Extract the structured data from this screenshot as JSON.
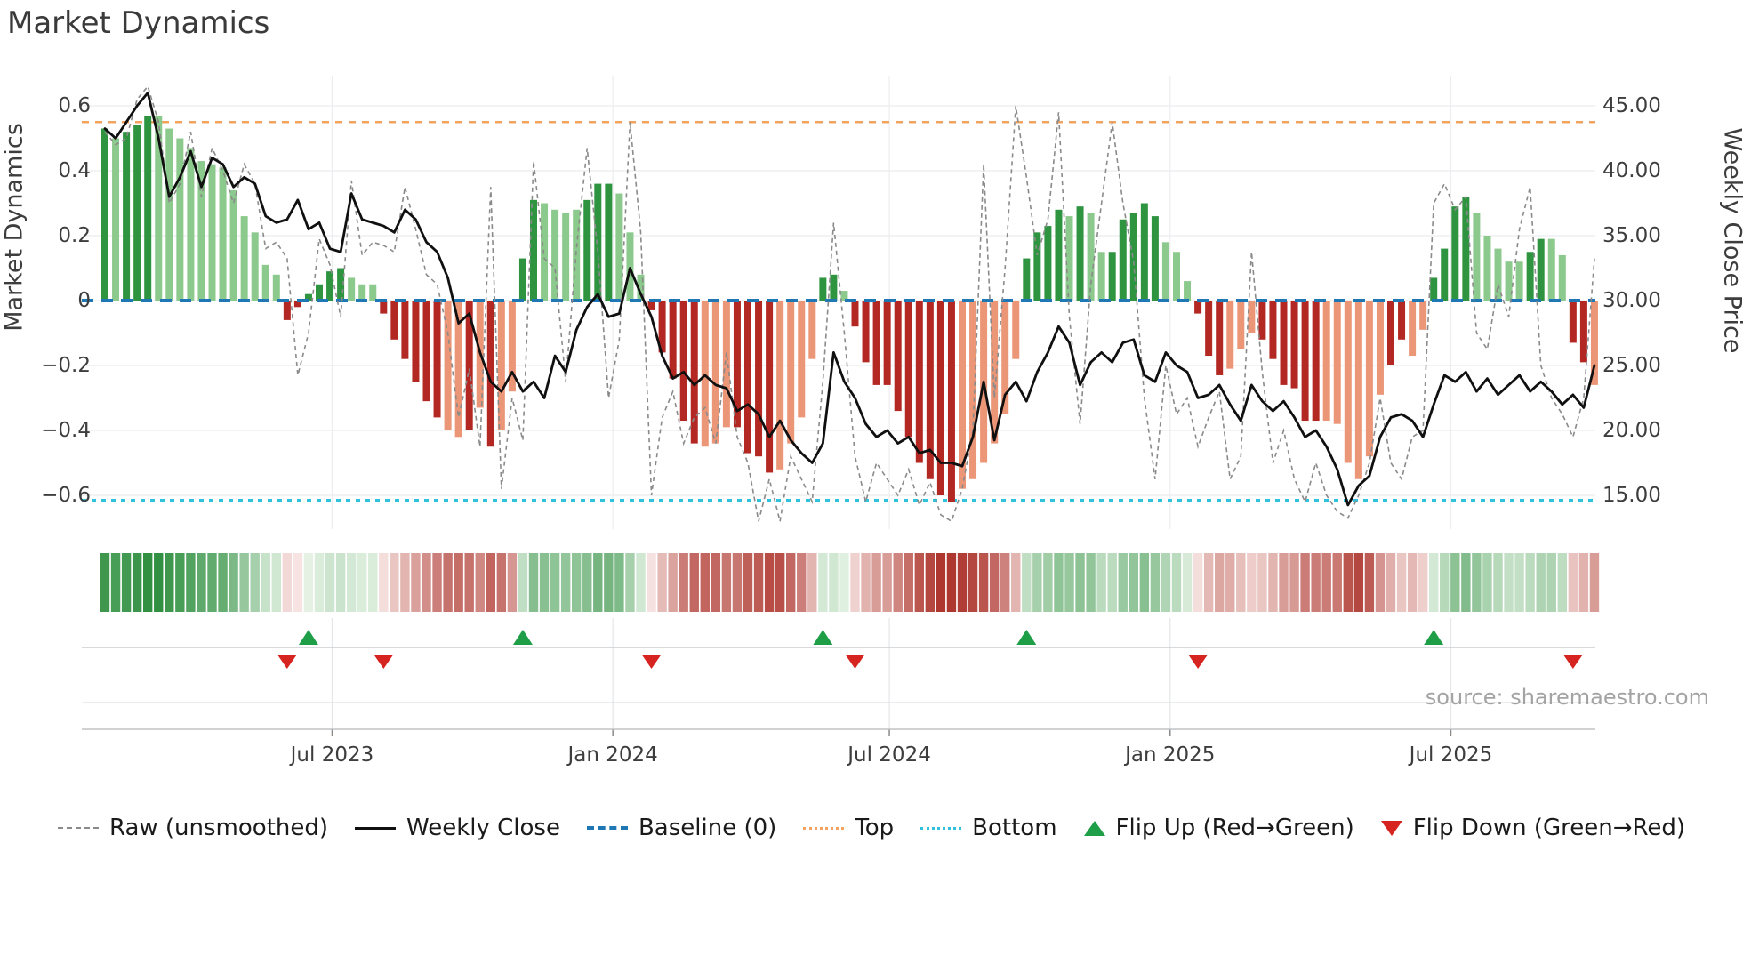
{
  "title": "Market Dynamics",
  "source": "source: sharemaestro.com",
  "y_axis_left": {
    "label": "Market Dynamics",
    "ticks": [
      "0.6",
      "0.4",
      "0.2",
      "0",
      "−0.2",
      "−0.4",
      "−0.6"
    ],
    "tick_values": [
      0.6,
      0.4,
      0.2,
      0,
      -0.2,
      -0.4,
      -0.6
    ]
  },
  "y_axis_right": {
    "label": "Weekly Close Price",
    "ticks": [
      "45.00",
      "40.00",
      "35.00",
      "30.00",
      "25.00",
      "20.00",
      "15.00"
    ],
    "tick_values": [
      45,
      40,
      35,
      30,
      25,
      20,
      15
    ]
  },
  "x_axis": {
    "ticks": [
      "Jul 2023",
      "Jan 2024",
      "Jul 2024",
      "Jan 2025",
      "Jul 2025"
    ]
  },
  "legend": [
    {
      "label": "Raw (unsmoothed)",
      "swatch": "dash-gray"
    },
    {
      "label": "Weekly Close",
      "swatch": "solid-black"
    },
    {
      "label": "Baseline (0)",
      "swatch": "dash-blue"
    },
    {
      "label": "Top",
      "swatch": "dot-orange"
    },
    {
      "label": "Bottom",
      "swatch": "dot-cyan"
    },
    {
      "label": "Flip Up (Red→Green)",
      "swatch": "tri-up"
    },
    {
      "label": "Flip Down (Green→Red)",
      "swatch": "tri-down"
    }
  ],
  "colors": {
    "bar_dark_green": "#2e9440",
    "bar_light_green": "#8cc98c",
    "bar_dark_red": "#b42824",
    "bar_light_red": "#ec9678",
    "close_line": "#101010",
    "raw_line": "#8a8a8a",
    "baseline": "#1f77b4",
    "top_line": "#f2a35e",
    "bottom_line": "#2fc2dd",
    "flip_up": "#1e9e47",
    "flip_down": "#d62420",
    "grid": "#e9ecef"
  },
  "chart_data": {
    "type": "bar+line",
    "weeks": 140,
    "x_tick_weeks": [
      21.2,
      47.4,
      73.2,
      99.4,
      125.6
    ],
    "ylim_left": [
      -0.7,
      0.7
    ],
    "ylim_right": [
      12.5,
      47.5
    ],
    "baseline": 0,
    "top_line": 0.55,
    "bottom_line": -0.615,
    "flip_up_weeks": [
      19,
      39,
      67,
      86,
      124
    ],
    "flip_down_weeks": [
      17,
      26,
      51,
      70,
      102,
      137
    ],
    "bars": [
      0.53,
      0.5,
      0.52,
      0.54,
      0.57,
      0.57,
      0.53,
      0.5,
      0.47,
      0.43,
      0.42,
      0.41,
      0.34,
      0.26,
      0.21,
      0.11,
      0.08,
      -0.06,
      -0.02,
      0.02,
      0.05,
      0.09,
      0.1,
      0.07,
      0.05,
      0.05,
      -0.04,
      -0.12,
      -0.18,
      -0.25,
      -0.31,
      -0.36,
      -0.4,
      -0.42,
      -0.4,
      -0.33,
      -0.45,
      -0.4,
      -0.28,
      0.13,
      0.31,
      0.3,
      0.28,
      0.27,
      0.28,
      0.31,
      0.36,
      0.36,
      0.33,
      0.21,
      0.08,
      -0.03,
      -0.16,
      -0.24,
      -0.37,
      -0.44,
      -0.45,
      -0.44,
      -0.39,
      -0.39,
      -0.47,
      -0.48,
      -0.53,
      -0.52,
      -0.44,
      -0.36,
      -0.18,
      0.07,
      0.08,
      0.03,
      -0.08,
      -0.19,
      -0.26,
      -0.26,
      -0.34,
      -0.42,
      -0.5,
      -0.55,
      -0.6,
      -0.62,
      -0.58,
      -0.55,
      -0.5,
      -0.44,
      -0.35,
      -0.18,
      0.13,
      0.21,
      0.23,
      0.28,
      0.26,
      0.29,
      0.27,
      0.15,
      0.15,
      0.25,
      0.27,
      0.3,
      0.26,
      0.18,
      0.15,
      0.06,
      -0.04,
      -0.17,
      -0.23,
      -0.21,
      -0.15,
      -0.1,
      -0.12,
      -0.18,
      -0.26,
      -0.27,
      -0.37,
      -0.37,
      -0.37,
      -0.38,
      -0.5,
      -0.55,
      -0.48,
      -0.29,
      -0.2,
      -0.12,
      -0.17,
      -0.09,
      0.07,
      0.16,
      0.29,
      0.32,
      0.27,
      0.2,
      0.16,
      0.12,
      0.12,
      0.15,
      0.19,
      0.19,
      0.14,
      -0.13,
      -0.19,
      -0.26
    ],
    "bar_shades": "dldddllllllllllllddddddlllddddddlldldllddlllldddllldddddlllddddllllddlddddddddddllllllddddldlldddddllldddlllddddddllllllddllddddlllllddllddl",
    "close": [
      43.25,
      42.5,
      43.75,
      45.0,
      46.0,
      42.5,
      38.0,
      39.5,
      41.5,
      38.75,
      41.0,
      40.5,
      38.75,
      39.5,
      39.0,
      36.5,
      36.0,
      36.25,
      37.75,
      35.5,
      36.0,
      34.0,
      33.75,
      38.25,
      36.25,
      36.0,
      35.75,
      35.25,
      37.0,
      36.25,
      34.5,
      33.75,
      31.75,
      28.25,
      29.0,
      26.0,
      23.75,
      23.0,
      24.5,
      23.0,
      23.75,
      22.5,
      25.75,
      24.5,
      27.75,
      29.5,
      30.5,
      28.75,
      29.0,
      32.5,
      30.5,
      28.75,
      25.75,
      24.0,
      24.5,
      23.5,
      24.25,
      23.5,
      23.25,
      21.5,
      22.0,
      21.25,
      19.5,
      20.75,
      19.25,
      18.25,
      17.5,
      19.0,
      26.0,
      23.75,
      22.5,
      20.5,
      19.5,
      20.0,
      19.0,
      19.5,
      18.25,
      18.5,
      17.5,
      17.5,
      17.25,
      19.5,
      23.75,
      19.25,
      22.75,
      23.75,
      22.25,
      24.5,
      26.0,
      28.0,
      26.75,
      23.5,
      25.25,
      26.0,
      25.25,
      26.75,
      27.0,
      24.25,
      23.75,
      26.0,
      25.0,
      24.5,
      22.5,
      22.75,
      23.5,
      22.0,
      20.75,
      23.5,
      22.25,
      21.5,
      22.25,
      21.0,
      19.5,
      20.0,
      18.75,
      17.0,
      14.25,
      15.75,
      16.5,
      19.5,
      21.0,
      21.25,
      20.75,
      19.5,
      22.0,
      24.25,
      23.75,
      24.5,
      23.0,
      24.0,
      22.75,
      23.5,
      24.25,
      23.0,
      23.75,
      23.0,
      22.0,
      22.75,
      21.75,
      25.0
    ],
    "raw": [
      0.52,
      0.48,
      0.5,
      0.62,
      0.66,
      0.55,
      0.3,
      0.36,
      0.52,
      0.32,
      0.47,
      0.4,
      0.3,
      0.42,
      0.36,
      0.16,
      0.18,
      0.13,
      -0.23,
      -0.1,
      0.19,
      0.11,
      -0.05,
      0.37,
      0.14,
      0.18,
      0.17,
      0.15,
      0.35,
      0.22,
      0.08,
      0.05,
      -0.1,
      -0.36,
      -0.21,
      -0.45,
      0.35,
      -0.58,
      -0.3,
      -0.43,
      0.43,
      0.13,
      0.1,
      -0.25,
      0.16,
      0.47,
      0.15,
      -0.3,
      -0.12,
      0.55,
      0.21,
      -0.6,
      -0.36,
      -0.28,
      -0.44,
      -0.36,
      -0.33,
      -0.44,
      -0.16,
      -0.42,
      -0.5,
      -0.68,
      -0.55,
      -0.68,
      -0.48,
      -0.55,
      -0.62,
      -0.25,
      0.24,
      -0.1,
      -0.48,
      -0.62,
      -0.5,
      -0.55,
      -0.6,
      -0.52,
      -0.63,
      -0.56,
      -0.66,
      -0.68,
      -0.58,
      -0.4,
      0.42,
      -0.3,
      0.1,
      0.6,
      0.38,
      0.14,
      0.25,
      0.58,
      -0.05,
      -0.38,
      0.05,
      0.3,
      0.55,
      0.3,
      0.12,
      -0.3,
      -0.55,
      -0.2,
      -0.35,
      -0.3,
      -0.45,
      -0.36,
      -0.28,
      -0.55,
      -0.48,
      0.15,
      -0.22,
      -0.5,
      -0.4,
      -0.55,
      -0.62,
      -0.5,
      -0.6,
      -0.65,
      -0.67,
      -0.6,
      -0.5,
      -0.3,
      -0.5,
      -0.55,
      -0.42,
      -0.4,
      0.3,
      0.36,
      0.28,
      0.32,
      -0.1,
      -0.15,
      0.05,
      -0.05,
      0.22,
      0.35,
      -0.2,
      -0.3,
      -0.35,
      -0.42,
      -0.3,
      0.13
    ]
  }
}
